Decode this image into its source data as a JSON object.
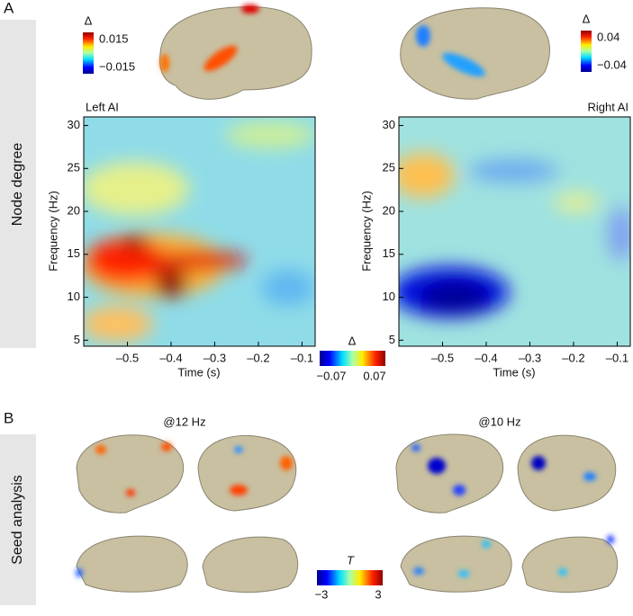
{
  "panel_a": {
    "label": "A",
    "side_label": "Node degree",
    "brain_colorbars": [
      {
        "symbol": "Δ",
        "max": 0.015,
        "min": {
          "value": -0.015,
          "label": "−0.015"
        }
      },
      {
        "symbol": "Δ",
        "max": 0.04,
        "min": {
          "value": -0.04,
          "label": "−0.04"
        }
      }
    ],
    "plots": [
      {
        "title": "Left AI"
      },
      {
        "title": "Right AI"
      }
    ],
    "xlabel": "Time (s)",
    "ylabel": "Frequency (Hz)",
    "xlim": [
      -0.6,
      -0.07
    ],
    "ylim": [
      4.3,
      31
    ],
    "xticks": [
      {
        "value": -0.5,
        "label": "–0.5"
      },
      {
        "value": -0.4,
        "label": "–0.4"
      },
      {
        "value": -0.3,
        "label": "–0.3"
      },
      {
        "value": -0.2,
        "label": "–0.2"
      },
      {
        "value": -0.1,
        "label": "–0.1"
      }
    ],
    "yticks": [
      5,
      10,
      15,
      20,
      25,
      30
    ],
    "colorbar": {
      "symbol": "Δ",
      "min": {
        "value": -0.07,
        "label": "−0.07"
      },
      "max": 0.07
    }
  },
  "panel_b": {
    "label": "B",
    "side_label": "Seed analysis",
    "conditions": [
      "@12 Hz",
      "@10 Hz"
    ],
    "colorbar": {
      "symbol": "T",
      "min": {
        "value": -3,
        "label": "−3"
      },
      "max": 3
    }
  }
}
